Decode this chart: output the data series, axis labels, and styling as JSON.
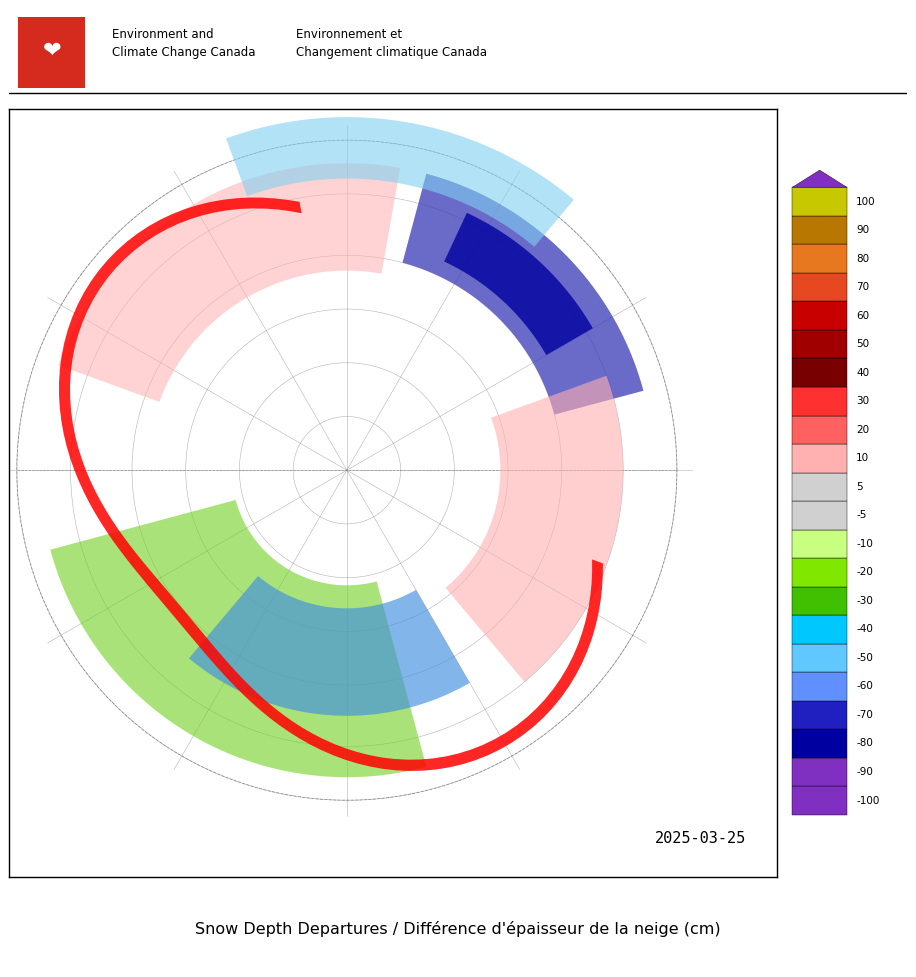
{
  "title": "Snow Depth Departures / Différence d'épaisseur de la neige (cm)",
  "date_label": "2025-03-25",
  "header_en": "Environment and\nClimate Change Canada",
  "header_fr": "Environnement et\nChangement climatique Canada",
  "colorbar_colors": [
    "#8030c0",
    "#8030c0",
    "#0000a0",
    "#2020c0",
    "#6090ff",
    "#60c8ff",
    "#00c8ff",
    "#40c000",
    "#80e800",
    "#c8ff80",
    "#d0d0d0",
    "#d0d0d0",
    "#ffb0b0",
    "#ff6060",
    "#ff3030",
    "#780000",
    "#a00000",
    "#c80000",
    "#e84820",
    "#e87820",
    "#b87800",
    "#c8c800"
  ],
  "colorbar_tick_labels": [
    "100",
    "90",
    "80",
    "70",
    "60",
    "50",
    "40",
    "30",
    "20",
    "10",
    "5",
    "-5",
    "-10",
    "-20",
    "-30",
    "-40",
    "-50",
    "-60",
    "-70",
    "-80",
    "-90",
    "-100"
  ],
  "background_color": "#ffffff",
  "map_background": "#ffffff",
  "border_color": "#000000",
  "flag_red": "#d52b1e",
  "header_bg": "#ffffff"
}
